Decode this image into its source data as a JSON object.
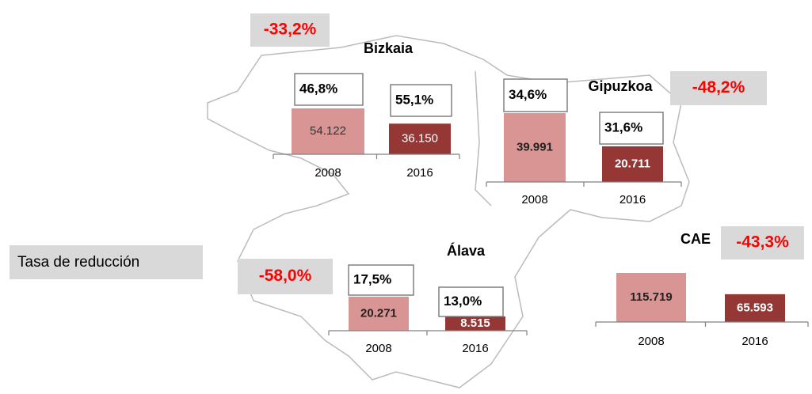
{
  "legend_label": "Tasa de reducción",
  "chart_data": [
    {
      "type": "bar",
      "title": "Bizkaia",
      "reduction": "-33,2%",
      "categories": [
        "2008",
        "2016"
      ],
      "values": [
        54122,
        36150
      ],
      "value_labels": [
        "54.122",
        "36.150"
      ],
      "shares": [
        "46,8%",
        "55,1%"
      ],
      "colors": [
        "#d99594",
        "#953735"
      ]
    },
    {
      "type": "bar",
      "title": "Gipuzkoa",
      "reduction": "-48,2%",
      "categories": [
        "2008",
        "2016"
      ],
      "values": [
        39991,
        20711
      ],
      "value_labels": [
        "39.991",
        "20.711"
      ],
      "shares": [
        "34,6%",
        "31,6%"
      ],
      "colors": [
        "#d99594",
        "#953735"
      ]
    },
    {
      "type": "bar",
      "title": "Álava",
      "reduction": "-58,0%",
      "categories": [
        "2008",
        "2016"
      ],
      "values": [
        20271,
        8515
      ],
      "value_labels": [
        "20.271",
        "8.515"
      ],
      "shares": [
        "17,5%",
        "13,0%"
      ],
      "colors": [
        "#d99594",
        "#953735"
      ]
    },
    {
      "type": "bar",
      "title": "CAE",
      "reduction": "-43,3%",
      "categories": [
        "2008",
        "2016"
      ],
      "values": [
        115719,
        65593
      ],
      "value_labels": [
        "115.719",
        "65.593"
      ],
      "colors": [
        "#d99594",
        "#953735"
      ]
    }
  ]
}
